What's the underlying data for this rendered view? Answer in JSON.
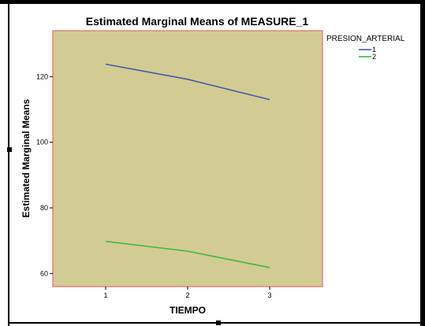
{
  "chart_data": {
    "type": "line",
    "title": "Estimated Marginal Means of MEASURE_1",
    "xlabel": "TIEMPO",
    "ylabel": "Estimated Marginal Means",
    "categories": [
      "1",
      "2",
      "3"
    ],
    "yticks": [
      "60",
      "80",
      "100",
      "120"
    ],
    "ylim": [
      56,
      134
    ],
    "legend_title": "PRESION_ARTERIAL",
    "legend_position": "top-right",
    "grid": false,
    "plot_background": "#D3CB94",
    "plot_border": "#E0706A",
    "series": [
      {
        "name": "1",
        "color": "#3F5BA9",
        "values": [
          123.8,
          119.2,
          113.0
        ]
      },
      {
        "name": "2",
        "color": "#3CB93F",
        "values": [
          69.8,
          66.8,
          61.8
        ]
      }
    ]
  }
}
